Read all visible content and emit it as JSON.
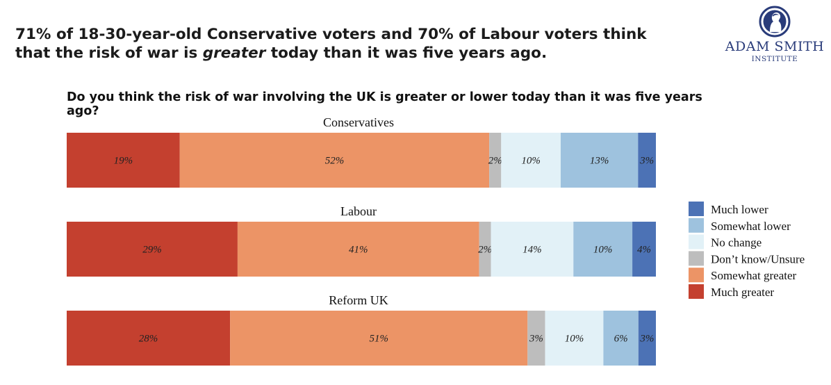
{
  "headline": {
    "part1": "71% of 18-30-year-old Conservative voters and 70% of Labour voters think",
    "part2": "that  the risk of war is ",
    "emph": "greater",
    "part3": " today than it was five years ago."
  },
  "logo": {
    "line1": "ADAM SMITH",
    "line2": "INSTITUTE",
    "icon": "portrait-medallion-icon",
    "color": "#2a3c7a"
  },
  "chart_data": {
    "type": "bar",
    "orientation": "horizontal-stacked-100",
    "title": "Do you think the risk of war involving the UK is greater or lower today than it was five years ago?",
    "categories": [
      "Conservatives",
      "Labour",
      "Reform UK"
    ],
    "series": [
      {
        "name": "Much greater",
        "color": "#c4402f",
        "values": [
          19,
          29,
          28
        ],
        "labels": [
          "19%",
          "29%",
          "28%"
        ]
      },
      {
        "name": "Somewhat greater",
        "color": "#ec9466",
        "values": [
          52,
          41,
          51
        ],
        "labels": [
          "52%",
          "41%",
          "51%"
        ]
      },
      {
        "name": "Don’t know/Unsure",
        "color": "#bdbdbd",
        "values": [
          2,
          2,
          3
        ],
        "labels": [
          "2%",
          "2%",
          "3%"
        ]
      },
      {
        "name": "No change",
        "color": "#e2f1f7",
        "values": [
          10,
          14,
          10
        ],
        "labels": [
          "10%",
          "14%",
          "10%"
        ]
      },
      {
        "name": "Somewhat lower",
        "color": "#9ec2de",
        "values": [
          13,
          10,
          6
        ],
        "labels": [
          "13%",
          "10%",
          "6%"
        ]
      },
      {
        "name": "Much lower",
        "color": "#4c72b5",
        "values": [
          3,
          4,
          3
        ],
        "labels": [
          "3%",
          "4%",
          "3%"
        ]
      }
    ],
    "legend_order": [
      "Much lower",
      "Somewhat lower",
      "No change",
      "Don’t know/Unsure",
      "Somewhat greater",
      "Much greater"
    ],
    "legend_position": "right",
    "grid": false
  }
}
